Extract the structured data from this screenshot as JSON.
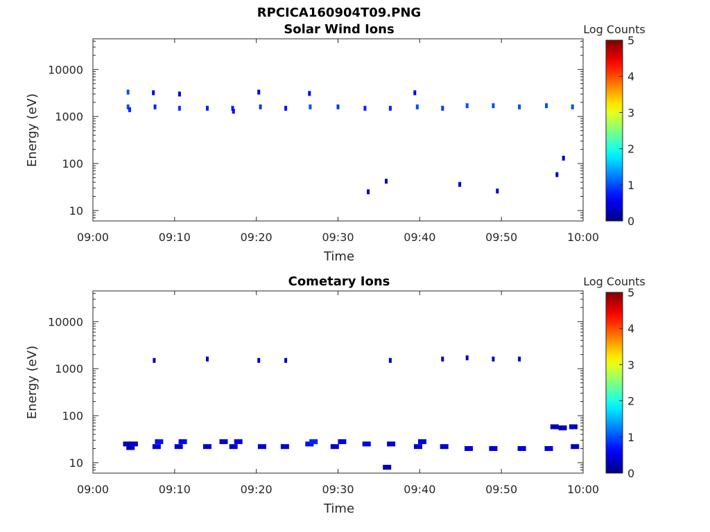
{
  "figure_title": "RPCICA160904T09.PNG",
  "colorbar": {
    "label": "Log Counts",
    "min": 0,
    "max": 5,
    "ticks": [
      "0",
      "1",
      "2",
      "3",
      "4",
      "5"
    ],
    "colormap": "jet"
  },
  "chart_data": [
    {
      "type": "heatmap",
      "title": "Solar Wind Ions",
      "xlabel": "Time",
      "ylabel": "Energy (eV)",
      "x_ticks": [
        "09:00",
        "09:10",
        "09:20",
        "09:30",
        "09:40",
        "09:50",
        "10:00"
      ],
      "y_ticks": [
        "10",
        "100",
        "1000",
        "10000"
      ],
      "xlim": [
        "09:00",
        "10:00"
      ],
      "ylim": [
        6,
        45000
      ],
      "y_scale": "log",
      "grid": false,
      "cells": [
        {
          "t": "09:04.3",
          "e": 3300,
          "c": 1.0
        },
        {
          "t": "09:04.3",
          "e": 1600,
          "c": 1.0
        },
        {
          "t": "09:04.5",
          "e": 1400,
          "c": 0.8
        },
        {
          "t": "09:07.4",
          "e": 3200,
          "c": 0.5
        },
        {
          "t": "09:07.6",
          "e": 1600,
          "c": 0.8
        },
        {
          "t": "09:10.6",
          "e": 3000,
          "c": 0.4
        },
        {
          "t": "09:10.6",
          "e": 1500,
          "c": 0.9
        },
        {
          "t": "09:14.0",
          "e": 1500,
          "c": 0.8
        },
        {
          "t": "09:17.1",
          "e": 1500,
          "c": 0.8
        },
        {
          "t": "09:17.2",
          "e": 1300,
          "c": 0.6
        },
        {
          "t": "09:20.3",
          "e": 3300,
          "c": 0.5
        },
        {
          "t": "09:20.5",
          "e": 1600,
          "c": 0.9
        },
        {
          "t": "09:23.6",
          "e": 1500,
          "c": 0.7
        },
        {
          "t": "09:26.5",
          "e": 3100,
          "c": 0.5
        },
        {
          "t": "09:26.6",
          "e": 1600,
          "c": 1.0
        },
        {
          "t": "09:30.0",
          "e": 1600,
          "c": 0.9
        },
        {
          "t": "09:33.3",
          "e": 1500,
          "c": 0.8
        },
        {
          "t": "09:33.7",
          "e": 25,
          "c": 0.3
        },
        {
          "t": "09:35.9",
          "e": 42,
          "c": 0.3
        },
        {
          "t": "09:36.4",
          "e": 1500,
          "c": 0.8
        },
        {
          "t": "09:39.4",
          "e": 3200,
          "c": 0.5
        },
        {
          "t": "09:39.7",
          "e": 1600,
          "c": 1.0
        },
        {
          "t": "09:42.8",
          "e": 1500,
          "c": 0.9
        },
        {
          "t": "09:44.9",
          "e": 36,
          "c": 0.3
        },
        {
          "t": "09:45.8",
          "e": 1700,
          "c": 1.0
        },
        {
          "t": "09:49.0",
          "e": 1700,
          "c": 1.0
        },
        {
          "t": "09:49.5",
          "e": 26,
          "c": 0.3
        },
        {
          "t": "09:52.2",
          "e": 1600,
          "c": 1.0
        },
        {
          "t": "09:55.5",
          "e": 1700,
          "c": 1.0
        },
        {
          "t": "09:56.8",
          "e": 58,
          "c": 0.3
        },
        {
          "t": "09:57.6",
          "e": 130,
          "c": 0.3
        },
        {
          "t": "09:58.7",
          "e": 1600,
          "c": 1.0
        }
      ]
    },
    {
      "type": "heatmap",
      "title": "Cometary Ions",
      "xlabel": "Time",
      "ylabel": "Energy (eV)",
      "x_ticks": [
        "09:00",
        "09:10",
        "09:20",
        "09:30",
        "09:40",
        "09:50",
        "10:00"
      ],
      "y_ticks": [
        "10",
        "100",
        "1000",
        "10000"
      ],
      "xlim": [
        "09:00",
        "10:00"
      ],
      "ylim": [
        6,
        45000
      ],
      "y_scale": "log",
      "grid": false,
      "cells": [
        {
          "t": "09:04.2",
          "e": 25,
          "c": 0.3
        },
        {
          "t": "09:04.6",
          "e": 21,
          "c": 0.3
        },
        {
          "t": "09:05.0",
          "e": 25,
          "c": 0.3
        },
        {
          "t": "09:07.5",
          "e": 1500,
          "c": 0.3
        },
        {
          "t": "09:07.8",
          "e": 22,
          "c": 0.4
        },
        {
          "t": "09:08.1",
          "e": 28,
          "c": 0.7
        },
        {
          "t": "09:10.5",
          "e": 22,
          "c": 0.4
        },
        {
          "t": "09:11.0",
          "e": 28,
          "c": 0.6
        },
        {
          "t": "09:14.0",
          "e": 1600,
          "c": 0.3
        },
        {
          "t": "09:14.0",
          "e": 22,
          "c": 0.4
        },
        {
          "t": "09:16.0",
          "e": 28,
          "c": 0.4
        },
        {
          "t": "09:17.2",
          "e": 22,
          "c": 0.4
        },
        {
          "t": "09:17.8",
          "e": 28,
          "c": 0.5
        },
        {
          "t": "09:20.3",
          "e": 1500,
          "c": 0.3
        },
        {
          "t": "09:20.7",
          "e": 22,
          "c": 0.4
        },
        {
          "t": "09:23.6",
          "e": 1500,
          "c": 0.3
        },
        {
          "t": "09:23.5",
          "e": 22,
          "c": 0.4
        },
        {
          "t": "09:26.5",
          "e": 25,
          "c": 0.7
        },
        {
          "t": "09:27.0",
          "e": 28,
          "c": 0.8
        },
        {
          "t": "09:29.6",
          "e": 22,
          "c": 0.4
        },
        {
          "t": "09:30.5",
          "e": 28,
          "c": 0.5
        },
        {
          "t": "09:33.5",
          "e": 25,
          "c": 0.5
        },
        {
          "t": "09:36.0",
          "e": 8,
          "c": 0.3
        },
        {
          "t": "09:36.4",
          "e": 1500,
          "c": 0.3
        },
        {
          "t": "09:36.5",
          "e": 25,
          "c": 0.4
        },
        {
          "t": "09:39.8",
          "e": 22,
          "c": 0.4
        },
        {
          "t": "09:40.3",
          "e": 28,
          "c": 0.5
        },
        {
          "t": "09:42.8",
          "e": 1600,
          "c": 0.3
        },
        {
          "t": "09:43.0",
          "e": 22,
          "c": 0.4
        },
        {
          "t": "09:45.8",
          "e": 1700,
          "c": 0.3
        },
        {
          "t": "09:46.0",
          "e": 20,
          "c": 0.4
        },
        {
          "t": "09:49.0",
          "e": 1600,
          "c": 0.3
        },
        {
          "t": "09:49.0",
          "e": 20,
          "c": 0.4
        },
        {
          "t": "09:52.2",
          "e": 1600,
          "c": 0.3
        },
        {
          "t": "09:52.5",
          "e": 20,
          "c": 0.4
        },
        {
          "t": "09:55.8",
          "e": 20,
          "c": 0.4
        },
        {
          "t": "09:56.5",
          "e": 58,
          "c": 0.3
        },
        {
          "t": "09:57.5",
          "e": 55,
          "c": 0.3
        },
        {
          "t": "09:58.8",
          "e": 58,
          "c": 0.3
        },
        {
          "t": "09:59.0",
          "e": 22,
          "c": 0.4
        }
      ]
    }
  ]
}
